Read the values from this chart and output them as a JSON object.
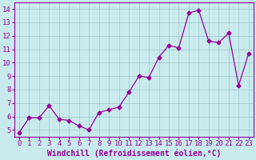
{
  "x": [
    0,
    1,
    2,
    3,
    4,
    5,
    6,
    7,
    8,
    9,
    10,
    11,
    12,
    13,
    14,
    15,
    16,
    17,
    18,
    19,
    20,
    21,
    22,
    23
  ],
  "y": [
    4.8,
    5.9,
    5.9,
    6.8,
    5.8,
    5.7,
    5.3,
    5.0,
    6.3,
    6.5,
    6.7,
    7.8,
    9.0,
    8.9,
    10.4,
    11.3,
    11.1,
    13.7,
    13.9,
    11.6,
    11.5,
    12.2,
    8.3,
    10.7
  ],
  "xlabel": "Windchill (Refroidissement éolien,°C)",
  "xlim": [
    -0.5,
    23.5
  ],
  "ylim": [
    4.5,
    14.5
  ],
  "xtick_labels": [
    "0",
    "1",
    "2",
    "3",
    "4",
    "5",
    "6",
    "7",
    "8",
    "9",
    "10",
    "11",
    "12",
    "13",
    "14",
    "15",
    "16",
    "17",
    "18",
    "19",
    "20",
    "21",
    "22",
    "23"
  ],
  "ytick_vals": [
    5,
    6,
    7,
    8,
    9,
    10,
    11,
    12,
    13,
    14
  ],
  "line_color": "#990099",
  "marker": "D",
  "marker_size": 2.5,
  "bg_color": "#c8eaec",
  "grid_color": "#a0c8cc",
  "xlabel_fontsize": 7,
  "tick_fontsize": 6.5,
  "figwidth": 3.2,
  "figheight": 2.0,
  "dpi": 100
}
